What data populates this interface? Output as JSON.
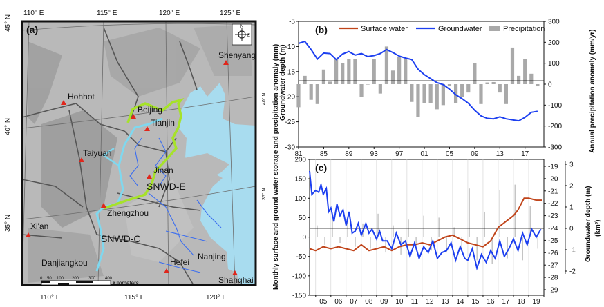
{
  "map": {
    "panel_tag": "(a)",
    "lon_labels": [
      "110° E",
      "115° E",
      "120° E",
      "125° E"
    ],
    "lat_labels_left": [
      "45° N",
      "40° N",
      "35° N"
    ],
    "lat_labels_inner": [
      "40° N",
      "35° N"
    ],
    "cities": [
      {
        "name": "Shenyang"
      },
      {
        "name": "Hohhot"
      },
      {
        "name": "Beijing"
      },
      {
        "name": "Tianjin"
      },
      {
        "name": "Taiyuan"
      },
      {
        "name": "Jinan"
      },
      {
        "name": "Zhengzhou"
      },
      {
        "name": "Xi'an"
      },
      {
        "name": "Danjiangkou"
      },
      {
        "name": "Hefei"
      },
      {
        "name": "Nanjing"
      },
      {
        "name": "Shanghai"
      }
    ],
    "route_labels": [
      "SNWD-E",
      "SNWD-C"
    ],
    "scale_numbers": [
      "0",
      "50",
      "100",
      "200",
      "300",
      "400"
    ],
    "scale_unit": "Kilometers",
    "compass_letters": [
      "N",
      "E"
    ],
    "colors": {
      "sea": "#a8dcef",
      "land": "#b8b8b8",
      "route_c": "#7fd8ef",
      "route_e": "#a6e22a",
      "rivers": "#3a6df0",
      "city": "#e0261b"
    }
  },
  "chart_data": [
    {
      "type": "line",
      "panel_tag": "(b)",
      "legend": [
        "Surface water",
        "Groundwater",
        "Precipitation"
      ],
      "colors": {
        "surface": "#c0441a",
        "ground": "#1c3ff0",
        "precip": "#a9a9a9"
      },
      "x_ticks": [
        "81",
        "85",
        "89",
        "93",
        "97",
        "01",
        "05",
        "09",
        "13",
        "17"
      ],
      "x_range": [
        1981,
        2020
      ],
      "y_left_label": "Groundwater depth (m)",
      "y_left_ticks": [
        "-5",
        "-10",
        "-15",
        "-20",
        "-25",
        "-30"
      ],
      "y_left_range": [
        -30,
        -5
      ],
      "y_right_label": "Annual precipitation anomaly (mm/yr)",
      "y_right_ticks": [
        "300",
        "200",
        "100",
        "0",
        "-100",
        "-200",
        "-300"
      ],
      "y_right_range": [
        -300,
        300
      ],
      "groundwater_depth": {
        "x": [
          1981,
          1982,
          1983,
          1984,
          1985,
          1986,
          1987,
          1988,
          1989,
          1990,
          1991,
          1992,
          1993,
          1994,
          1995,
          1996,
          1997,
          1998,
          1999,
          2000,
          2001,
          2002,
          2003,
          2004,
          2005,
          2006,
          2007,
          2008,
          2009,
          2010,
          2011,
          2012,
          2013,
          2014,
          2015,
          2016,
          2017,
          2018,
          2019
        ],
        "y": [
          -9.4,
          -9.0,
          -10.6,
          -12.5,
          -11.3,
          -11.4,
          -12.6,
          -11.5,
          -11.0,
          -11.7,
          -11.4,
          -12.0,
          -11.8,
          -11.4,
          -10.6,
          -11.2,
          -11.9,
          -12.3,
          -12.6,
          -14.5,
          -15.6,
          -16.4,
          -17.2,
          -17.6,
          -18.5,
          -19.6,
          -20.4,
          -21.3,
          -22.7,
          -23.8,
          -24.3,
          -24.4,
          -24.0,
          -24.4,
          -24.6,
          -24.8,
          -24.1,
          -23.1,
          -22.9
        ]
      },
      "precipitation_anomaly": {
        "x": [
          1981,
          1982,
          1983,
          1984,
          1985,
          1986,
          1987,
          1988,
          1989,
          1990,
          1991,
          1992,
          1993,
          1994,
          1995,
          1996,
          1997,
          1998,
          1999,
          2000,
          2001,
          2002,
          2003,
          2004,
          2005,
          2006,
          2007,
          2008,
          2009,
          2010,
          2011,
          2012,
          2013,
          2014,
          2015,
          2016,
          2017,
          2018,
          2019
        ],
        "y": [
          -110,
          40,
          -75,
          -95,
          70,
          12,
          120,
          100,
          120,
          120,
          -60,
          0,
          120,
          -45,
          180,
          65,
          130,
          120,
          -85,
          -155,
          -90,
          -90,
          -120,
          -100,
          -10,
          -90,
          -60,
          -40,
          100,
          -95,
          8,
          10,
          -40,
          -95,
          175,
          40,
          120,
          50,
          -10
        ]
      }
    },
    {
      "type": "line",
      "panel_tag": "(c)",
      "x_ticks": [
        "05",
        "06",
        "07",
        "08",
        "09",
        "10",
        "11",
        "12",
        "13",
        "14",
        "15",
        "16",
        "17",
        "18",
        "19"
      ],
      "x_range": [
        2004.6,
        2020.0
      ],
      "y_left_label": "Monthly surface and ground water storage and precipitation anomaly (mm)",
      "y_left_ticks": [
        "200",
        "150",
        "100",
        "50",
        "0",
        "-50",
        "-100",
        "-150"
      ],
      "y_left_range": [
        -150,
        200
      ],
      "y_right1_label": "Groundwater depth (m)",
      "y_right1_ticks": [
        "-19",
        "-20",
        "-21",
        "-22",
        "-23",
        "-24",
        "-25",
        "-26",
        "-27",
        "-28",
        "-29"
      ],
      "y_right2_label": "(km³)",
      "y_right2_ticks": [
        "3",
        "2",
        "1",
        "0",
        "-1",
        "-2"
      ],
      "groundwater_anomaly": {
        "x": [
          2004.6,
          2004.75,
          2005.0,
          2005.2,
          2005.35,
          2005.5,
          2005.7,
          2005.85,
          2006.0,
          2006.2,
          2006.4,
          2006.6,
          2006.8,
          2007.0,
          2007.2,
          2007.4,
          2007.6,
          2007.8,
          2008.0,
          2008.3,
          2008.5,
          2008.7,
          2009.0,
          2009.2,
          2009.4,
          2009.7,
          2010.0,
          2010.3,
          2010.6,
          2010.9,
          2011.2,
          2011.5,
          2011.8,
          2012.1,
          2012.4,
          2012.7,
          2013.0,
          2013.3,
          2013.6,
          2013.9,
          2014.2,
          2014.5,
          2014.8,
          2015.0,
          2015.3,
          2015.6,
          2015.9,
          2016.2,
          2016.5,
          2016.8,
          2017.1,
          2017.4,
          2017.7,
          2018.0,
          2018.3,
          2018.6,
          2018.9,
          2019.2,
          2019.5,
          2019.8
        ],
        "y": [
          170,
          110,
          120,
          115,
          135,
          110,
          125,
          65,
          75,
          40,
          85,
          55,
          70,
          30,
          65,
          10,
          15,
          35,
          5,
          35,
          10,
          20,
          -5,
          15,
          -10,
          -10,
          -30,
          10,
          -20,
          -10,
          -50,
          -15,
          -55,
          -25,
          -40,
          -10,
          -55,
          -40,
          -35,
          -15,
          -60,
          -25,
          -55,
          -60,
          -30,
          -80,
          -45,
          -65,
          -35,
          -55,
          -10,
          -50,
          -30,
          -5,
          -35,
          10,
          -20,
          20,
          0,
          20
        ]
      },
      "surface_water_anomaly": {
        "x": [
          2004.6,
          2005.0,
          2005.5,
          2006.0,
          2006.5,
          2007.0,
          2007.5,
          2008.0,
          2008.5,
          2009.0,
          2009.5,
          2010.0,
          2010.5,
          2011.0,
          2011.5,
          2012.0,
          2012.5,
          2013.0,
          2013.5,
          2014.0,
          2014.5,
          2015.0,
          2015.5,
          2016.0,
          2016.5,
          2017.0,
          2017.5,
          2018.0,
          2018.3,
          2018.7,
          2019.0,
          2019.5,
          2019.9
        ],
        "y": [
          -30,
          -35,
          -25,
          -30,
          -25,
          -30,
          -35,
          -20,
          -35,
          -30,
          -25,
          -35,
          -25,
          -20,
          -20,
          -15,
          -20,
          -10,
          0,
          5,
          -5,
          -15,
          -20,
          -25,
          -10,
          25,
          40,
          55,
          70,
          100,
          100,
          95,
          95
        ]
      },
      "precipitation_bars": {
        "x": [
          2005.1,
          2005.6,
          2006.1,
          2006.6,
          2007.1,
          2007.6,
          2008.1,
          2008.6,
          2009.1,
          2009.6,
          2010.1,
          2010.6,
          2011.1,
          2011.6,
          2012.1,
          2012.6,
          2013.1,
          2013.6,
          2014.1,
          2014.6,
          2015.1,
          2015.6,
          2016.1,
          2016.6,
          2017.1,
          2017.6,
          2018.1,
          2018.6,
          2019.1,
          2019.6
        ],
        "y": [
          30,
          -20,
          45,
          -15,
          40,
          -25,
          35,
          -30,
          60,
          -40,
          30,
          -45,
          45,
          -25,
          55,
          -35,
          50,
          -40,
          25,
          -30,
          125,
          -60,
          65,
          -70,
          120,
          -55,
          135,
          -60,
          80,
          -30
        ]
      }
    }
  ]
}
